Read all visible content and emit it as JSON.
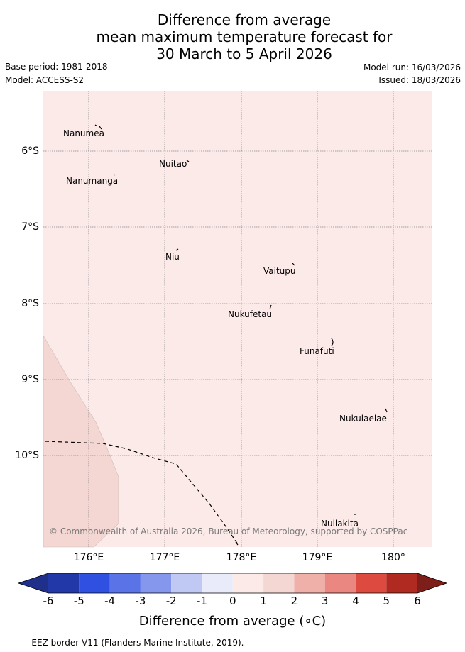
{
  "title": {
    "line1": "Difference from average",
    "line2": "mean maximum temperature forecast for",
    "line3": "30 March to 5 April 2026"
  },
  "meta": {
    "base_period": "Base period: 1981-2018",
    "model": "Model: ACCESS-S2",
    "model_run": "Model run: 16/03/2026",
    "issued": "Issued: 18/03/2026"
  },
  "map": {
    "lat_labels": [
      "6°S",
      "7°S",
      "8°S",
      "9°S",
      "10°S"
    ],
    "lon_labels": [
      "176°E",
      "177°E",
      "178°E",
      "179°E",
      "180°"
    ],
    "places": [
      {
        "name": "Nanumea"
      },
      {
        "name": "Nuitao"
      },
      {
        "name": "Nanumanga"
      },
      {
        "name": "Niu"
      },
      {
        "name": "Vaitupu"
      },
      {
        "name": "Nukufetau"
      },
      {
        "name": "Funafuti"
      },
      {
        "name": "Nukulaelae"
      },
      {
        "name": "Nuilakita"
      }
    ],
    "copyright": "© Commonwealth of Australia 2026, Bureau of Meteorology, supported by COSPPac",
    "colors": {
      "background_anomaly": "#fbeae8",
      "warm_anomaly": "#f4d6d2",
      "grid": "#888888"
    }
  },
  "colorbar": {
    "ticks": [
      "-6",
      "-5",
      "-4",
      "-3",
      "-2",
      "-1",
      "0",
      "1",
      "2",
      "3",
      "4",
      "5",
      "6"
    ],
    "colors": [
      "#1f2f8a",
      "#2338a8",
      "#2f50e0",
      "#5a73e6",
      "#8597ec",
      "#c0c8f4",
      "#e9ebfb",
      "#fbeae8",
      "#f4d6d2",
      "#efb0aa",
      "#e98780",
      "#dc4a40",
      "#b12a22",
      "#7d1e1a"
    ],
    "title": "Difference from average (∘C)"
  },
  "footer": {
    "eez_note": "-- -- -- EEZ border V11 (Flanders Marine Institute, 2019)."
  }
}
